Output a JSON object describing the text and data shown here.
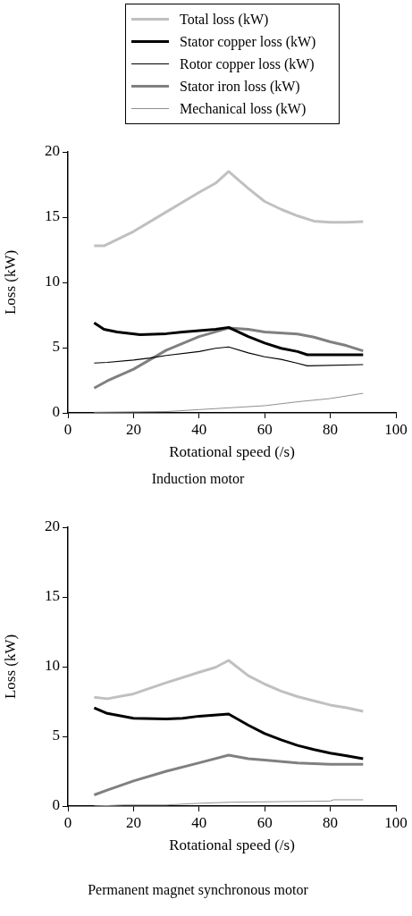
{
  "chart_data": [
    {
      "type": "line",
      "title": "Induction motor",
      "xlabel": "Rotational speed (/s)",
      "ylabel": "Loss (kW)",
      "xlim": [
        0,
        100
      ],
      "xticks": [
        0,
        20,
        40,
        60,
        80,
        100
      ],
      "ylim": [
        0,
        20
      ],
      "yticks": [
        0,
        5,
        10,
        15,
        20
      ],
      "grid": false,
      "legend": "top",
      "marker": "none",
      "line_style": "solid",
      "series": [
        {
          "name": "Total loss (kW)",
          "color": "#c0c0c0",
          "x": [
            8,
            11,
            20,
            30,
            40,
            45,
            49,
            55,
            60,
            65,
            70,
            75,
            80,
            85,
            90
          ],
          "values": [
            12.8,
            12.8,
            13.9,
            15.4,
            16.9,
            17.6,
            18.5,
            17.2,
            16.2,
            15.6,
            15.1,
            14.7,
            14.6,
            14.6,
            14.65
          ]
        },
        {
          "name": "Stator copper loss (kW)",
          "color": "#000000",
          "x": [
            8,
            11,
            15,
            22,
            30,
            35,
            40,
            45,
            49,
            55,
            60,
            65,
            70,
            73,
            80,
            90
          ],
          "values": [
            6.9,
            6.4,
            6.2,
            6.0,
            6.07,
            6.2,
            6.3,
            6.4,
            6.55,
            5.85,
            5.35,
            4.95,
            4.7,
            4.45,
            4.45,
            4.45
          ]
        },
        {
          "name": "Rotor copper loss (kW)",
          "color": "#000000",
          "x": [
            8,
            12,
            20,
            25,
            30,
            40,
            45,
            49,
            55,
            60,
            65,
            70,
            73,
            90
          ],
          "values": [
            3.82,
            3.87,
            4.05,
            4.2,
            4.4,
            4.7,
            4.95,
            5.05,
            4.6,
            4.3,
            4.1,
            3.8,
            3.6,
            3.7
          ]
        },
        {
          "name": "Stator iron loss (kW)",
          "color": "#808080",
          "x": [
            8,
            12,
            20,
            30,
            40,
            49,
            55,
            60,
            70,
            75,
            80,
            85,
            90
          ],
          "values": [
            1.9,
            2.45,
            3.35,
            4.8,
            5.85,
            6.5,
            6.4,
            6.2,
            6.05,
            5.8,
            5.45,
            5.15,
            4.75
          ]
        },
        {
          "name": "Mechanical loss (kW)",
          "color": "#909090",
          "x": [
            8,
            30,
            40,
            50,
            60,
            70,
            80,
            90
          ],
          "values": [
            0.05,
            0.1,
            0.25,
            0.4,
            0.55,
            0.85,
            1.1,
            1.5
          ]
        }
      ]
    },
    {
      "type": "line",
      "title": "Permanent magnet synchronous motor",
      "xlabel": "Rotational speed (/s)",
      "ylabel": "Loss (kW)",
      "xlim": [
        0,
        100
      ],
      "xticks": [
        0,
        20,
        40,
        60,
        80,
        100
      ],
      "ylim": [
        0,
        20
      ],
      "yticks": [
        0,
        5,
        10,
        15,
        20
      ],
      "grid": false,
      "marker": "none",
      "line_style": "solid",
      "series": [
        {
          "color": "#c0c0c0",
          "x": [
            8,
            12,
            20,
            30,
            40,
            45,
            49,
            55,
            60,
            65,
            70,
            75,
            80,
            85,
            90
          ],
          "values": [
            7.8,
            7.7,
            8.05,
            8.85,
            9.6,
            9.95,
            10.45,
            9.35,
            8.75,
            8.25,
            7.85,
            7.55,
            7.25,
            7.05,
            6.8
          ]
        },
        {
          "color": "#000000",
          "x": [
            8,
            12,
            20,
            30,
            35,
            40,
            49,
            55,
            60,
            65,
            70,
            75,
            80,
            85,
            90
          ],
          "values": [
            7.05,
            6.65,
            6.3,
            6.25,
            6.3,
            6.45,
            6.6,
            5.8,
            5.2,
            4.75,
            4.35,
            4.05,
            3.8,
            3.6,
            3.4
          ]
        },
        {
          "color": "#808080",
          "x": [
            8,
            12,
            20,
            30,
            40,
            49,
            55,
            60,
            70,
            80,
            90
          ],
          "values": [
            0.8,
            1.15,
            1.8,
            2.5,
            3.1,
            3.65,
            3.4,
            3.3,
            3.1,
            3.0,
            3.0
          ]
        },
        {
          "color": "#909090",
          "x": [
            8,
            17,
            30,
            40,
            50,
            80,
            81,
            90
          ],
          "values": [
            0,
            0.08,
            0.08,
            0.2,
            0.28,
            0.36,
            0.45,
            0.45
          ]
        }
      ]
    }
  ]
}
